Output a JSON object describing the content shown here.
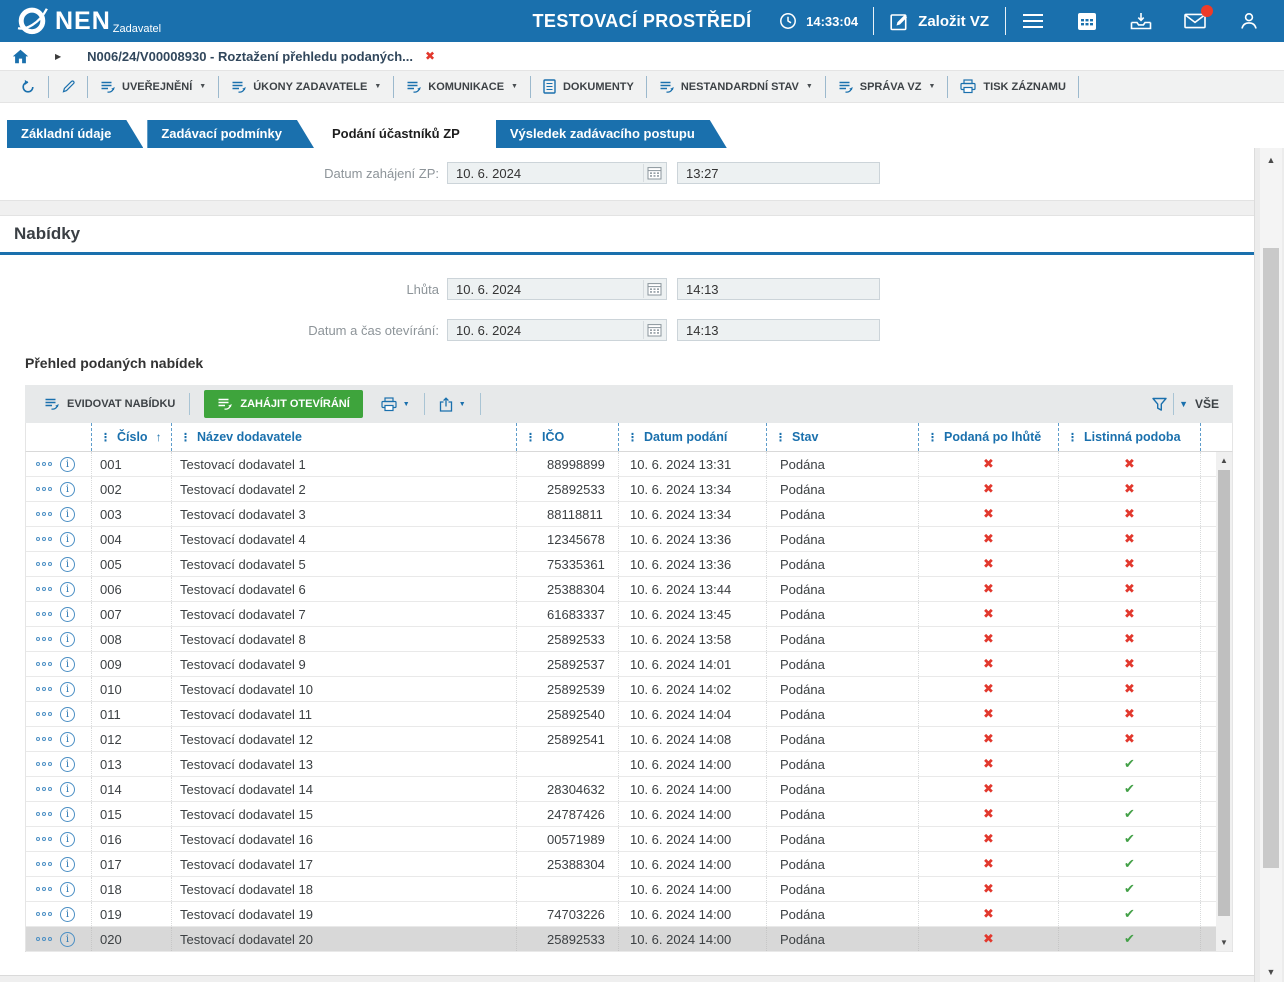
{
  "colors": {
    "accent_blue": "#1a70ad",
    "green_button": "#3ea43c",
    "status_red": "#e2382d",
    "status_green": "#43a047"
  },
  "header": {
    "logo": "NEN",
    "logo_sub": "Zadavatel",
    "title": "TESTOVACÍ PROSTŘEDÍ",
    "clock": "14:33:04",
    "create_vz": "Založit VZ"
  },
  "breadcrumb": {
    "item": "N006/24/V00008930 - Roztažení přehledu podaných..."
  },
  "toolbar": {
    "buttons": [
      {
        "icon": "refresh",
        "label": "",
        "dropdown": false
      },
      {
        "icon": "pencil",
        "label": "",
        "dropdown": false
      },
      {
        "icon": "action",
        "label": "UVEŘEJNĚNÍ",
        "dropdown": true
      },
      {
        "icon": "action",
        "label": "ÚKONY ZADAVATELE",
        "dropdown": true
      },
      {
        "icon": "action",
        "label": "KOMUNIKACE",
        "dropdown": true
      },
      {
        "icon": "document",
        "label": "DOKUMENTY",
        "dropdown": false
      },
      {
        "icon": "action",
        "label": "NESTANDARDNÍ STAV",
        "dropdown": true
      },
      {
        "icon": "action",
        "label": "SPRÁVA VZ",
        "dropdown": true
      },
      {
        "icon": "printer",
        "label": "TISK ZÁZNAMU",
        "dropdown": false
      }
    ]
  },
  "tabs": [
    {
      "label": "Základní údaje",
      "active": false
    },
    {
      "label": "Zadávací podmínky",
      "active": false
    },
    {
      "label": "Podání účastníků ZP",
      "active": true
    },
    {
      "label": "Výsledek zadávacího postupu",
      "active": false
    }
  ],
  "fields": {
    "zahajeni": {
      "label": "Datum zahájení ZP:",
      "date": "10. 6. 2024",
      "time": "13:27"
    },
    "lhuta": {
      "label": "Lhůta",
      "date": "10. 6. 2024",
      "time": "14:13"
    },
    "otevirani": {
      "label": "Datum a čas otevírání:",
      "date": "10. 6. 2024",
      "time": "14:13"
    }
  },
  "section_title": "Nabídky",
  "grid_title": "Přehled podaných nabídek",
  "grid_toolbar": {
    "evidovat": "EVIDOVAT NABÍDKU",
    "zahajit": "ZAHÁJIT OTEVÍRÁNÍ",
    "filter_all": "VŠE"
  },
  "grid": {
    "columns": [
      "Číslo",
      "Název dodavatele",
      "IČO",
      "Datum podání",
      "Stav",
      "Podaná po lhůtě",
      "Listinná podoba"
    ],
    "sorted_by": "Číslo",
    "selected_row": 19,
    "rows": [
      {
        "cislo": "001",
        "nazev": "Testovací dodavatel 1",
        "ico": "88998899",
        "datum": "10. 6. 2024 13:31",
        "stav": "Podána",
        "po_lhute": false,
        "listinna": false
      },
      {
        "cislo": "002",
        "nazev": "Testovací dodavatel 2",
        "ico": "25892533",
        "datum": "10. 6. 2024 13:34",
        "stav": "Podána",
        "po_lhute": false,
        "listinna": false
      },
      {
        "cislo": "003",
        "nazev": "Testovací dodavatel 3",
        "ico": "88118811",
        "datum": "10. 6. 2024 13:34",
        "stav": "Podána",
        "po_lhute": false,
        "listinna": false
      },
      {
        "cislo": "004",
        "nazev": "Testovací dodavatel 4",
        "ico": "12345678",
        "datum": "10. 6. 2024 13:36",
        "stav": "Podána",
        "po_lhute": false,
        "listinna": false
      },
      {
        "cislo": "005",
        "nazev": "Testovací dodavatel 5",
        "ico": "75335361",
        "datum": "10. 6. 2024 13:36",
        "stav": "Podána",
        "po_lhute": false,
        "listinna": false
      },
      {
        "cislo": "006",
        "nazev": "Testovací dodavatel 6",
        "ico": "25388304",
        "datum": "10. 6. 2024 13:44",
        "stav": "Podána",
        "po_lhute": false,
        "listinna": false
      },
      {
        "cislo": "007",
        "nazev": "Testovací dodavatel 7",
        "ico": "61683337",
        "datum": "10. 6. 2024 13:45",
        "stav": "Podána",
        "po_lhute": false,
        "listinna": false
      },
      {
        "cislo": "008",
        "nazev": "Testovací dodavatel 8",
        "ico": "25892533",
        "datum": "10. 6. 2024 13:58",
        "stav": "Podána",
        "po_lhute": false,
        "listinna": false
      },
      {
        "cislo": "009",
        "nazev": "Testovací dodavatel 9",
        "ico": "25892537",
        "datum": "10. 6. 2024 14:01",
        "stav": "Podána",
        "po_lhute": false,
        "listinna": false
      },
      {
        "cislo": "010",
        "nazev": "Testovací dodavatel 10",
        "ico": "25892539",
        "datum": "10. 6. 2024 14:02",
        "stav": "Podána",
        "po_lhute": false,
        "listinna": false
      },
      {
        "cislo": "011",
        "nazev": "Testovací dodavatel 11",
        "ico": "25892540",
        "datum": "10. 6. 2024 14:04",
        "stav": "Podána",
        "po_lhute": false,
        "listinna": false
      },
      {
        "cislo": "012",
        "nazev": "Testovací dodavatel 12",
        "ico": "25892541",
        "datum": "10. 6. 2024 14:08",
        "stav": "Podána",
        "po_lhute": false,
        "listinna": false
      },
      {
        "cislo": "013",
        "nazev": "Testovací dodavatel 13",
        "ico": "",
        "datum": "10. 6. 2024 14:00",
        "stav": "Podána",
        "po_lhute": false,
        "listinna": true
      },
      {
        "cislo": "014",
        "nazev": "Testovací dodavatel 14",
        "ico": "28304632",
        "datum": "10. 6. 2024 14:00",
        "stav": "Podána",
        "po_lhute": false,
        "listinna": true
      },
      {
        "cislo": "015",
        "nazev": "Testovací dodavatel 15",
        "ico": "24787426",
        "datum": "10. 6. 2024 14:00",
        "stav": "Podána",
        "po_lhute": false,
        "listinna": true
      },
      {
        "cislo": "016",
        "nazev": "Testovací dodavatel 16",
        "ico": "00571989",
        "datum": "10. 6. 2024 14:00",
        "stav": "Podána",
        "po_lhute": false,
        "listinna": true
      },
      {
        "cislo": "017",
        "nazev": "Testovací dodavatel 17",
        "ico": "25388304",
        "datum": "10. 6. 2024 14:00",
        "stav": "Podána",
        "po_lhute": false,
        "listinna": true
      },
      {
        "cislo": "018",
        "nazev": "Testovací dodavatel 18",
        "ico": "",
        "datum": "10. 6. 2024 14:00",
        "stav": "Podána",
        "po_lhute": false,
        "listinna": true
      },
      {
        "cislo": "019",
        "nazev": "Testovací dodavatel 19",
        "ico": "74703226",
        "datum": "10. 6. 2024 14:00",
        "stav": "Podána",
        "po_lhute": false,
        "listinna": true
      },
      {
        "cislo": "020",
        "nazev": "Testovací dodavatel 20",
        "ico": "25892533",
        "datum": "10. 6. 2024 14:00",
        "stav": "Podána",
        "po_lhute": false,
        "listinna": true
      }
    ]
  },
  "icons": {
    "caret_down": "▼",
    "sort_asc": "↑",
    "column_menu": "⋮",
    "check": "✔",
    "cross": "✖",
    "close": "✖",
    "chevron_right": "▶",
    "scroll_up": "▲",
    "scroll_down": "▼"
  }
}
